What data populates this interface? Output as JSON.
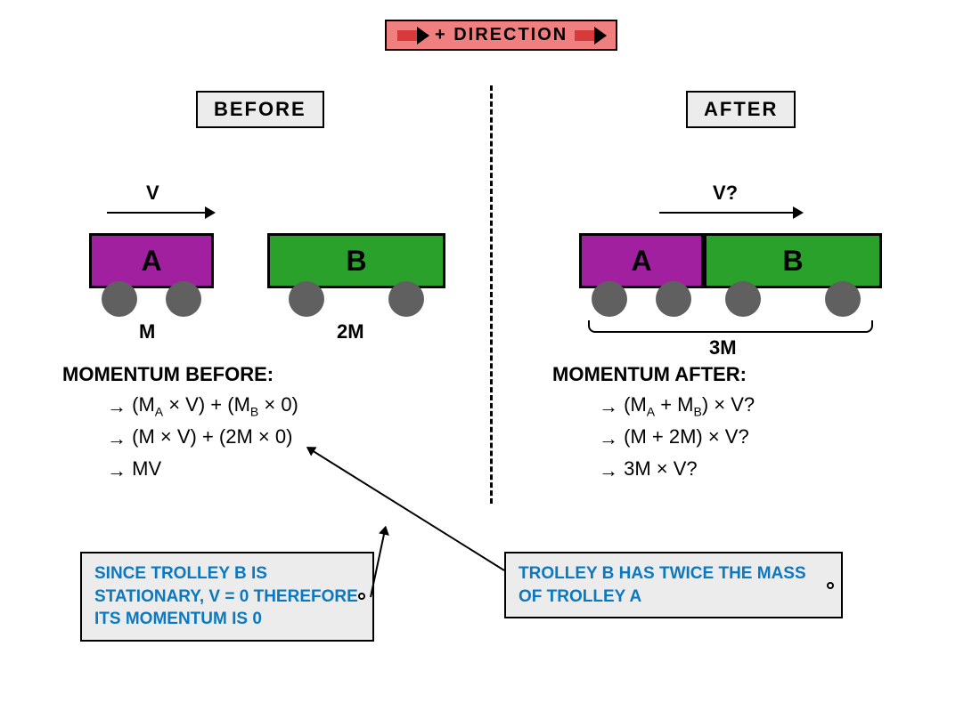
{
  "colors": {
    "direction_bg": "#f08080",
    "direction_arrow": "#d63a3a",
    "trolley_a": "#a020a0",
    "trolley_b": "#2aa12a",
    "wheel": "#606060",
    "note_text": "#0b78bf",
    "label_bg": "#ececec"
  },
  "direction": {
    "label": "+ DIRECTION"
  },
  "sections": {
    "before": "BEFORE",
    "after": "AFTER"
  },
  "trolleys": {
    "a_label": "A",
    "b_label": "B",
    "a_width": 140,
    "b_width": 200,
    "height": 62,
    "wheel_diameter": 40
  },
  "before_scene": {
    "a_velocity_label": "V",
    "a_mass_label": "M",
    "b_mass_label": "2M",
    "momentum_label": "MOMENTUM BEFORE:",
    "momentum_expr_1": "(M_A × V) + (M_B × 0)",
    "momentum_expr_2": "(M × V) + (2M × 0)",
    "momentum_expr_3": "MV"
  },
  "after_scene": {
    "combined_velocity_label": "V?",
    "momentum_label": "MOMENTUM AFTER:",
    "momentum_expr_1": "(M_A + M_B) × V?",
    "momentum_expr_2": "(M + 2M) × V?",
    "momentum_expr_3": "3M × V?"
  },
  "notes": {
    "b_stationary": "SINCE TROLLEY B IS STATIONARY, V = 0 THEREFORE ITS MOMENTUM IS 0",
    "b_mass": "TROLLEY B HAS TWICE THE MASS OF TROLLEY A"
  }
}
